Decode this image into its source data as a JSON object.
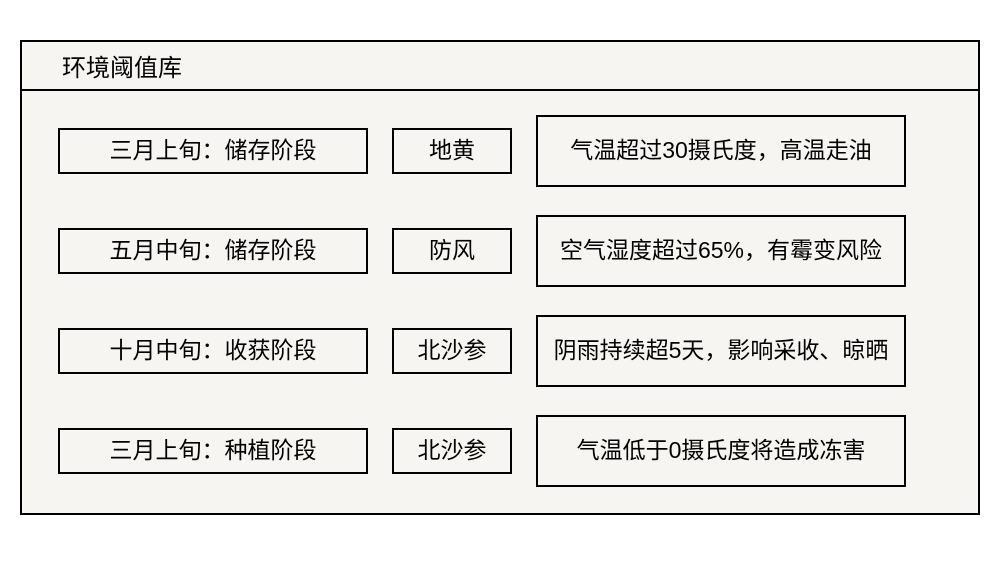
{
  "type": "table",
  "title": "环境阈值库",
  "colors": {
    "background": "#f7f5f2",
    "border": "#000000",
    "text": "#000000"
  },
  "typography": {
    "title_fontsize": 24,
    "cell_fontsize": 23,
    "font_family": "Microsoft YaHei"
  },
  "layout": {
    "outer_width": 960,
    "row_gap": 28,
    "cell_gap": 24,
    "border_width": 2,
    "stage_cell_width": 310,
    "herb_cell_width": 120,
    "note_cell_width": 370,
    "stage_cell_height": 46,
    "note_cell_height": 72
  },
  "columns": [
    "stage",
    "herb",
    "note"
  ],
  "rows": [
    {
      "stage": "三月上旬：储存阶段",
      "herb": "地黄",
      "note": "气温超过30摄氏度，高温走油"
    },
    {
      "stage": "五月中旬：储存阶段",
      "herb": "防风",
      "note": "空气湿度超过65%，有霉变风险"
    },
    {
      "stage": "十月中旬：收获阶段",
      "herb": "北沙参",
      "note": "阴雨持续超5天，影响采收、晾晒"
    },
    {
      "stage": "三月上旬：种植阶段",
      "herb": "北沙参",
      "note": "气温低于0摄氏度将造成冻害"
    }
  ]
}
